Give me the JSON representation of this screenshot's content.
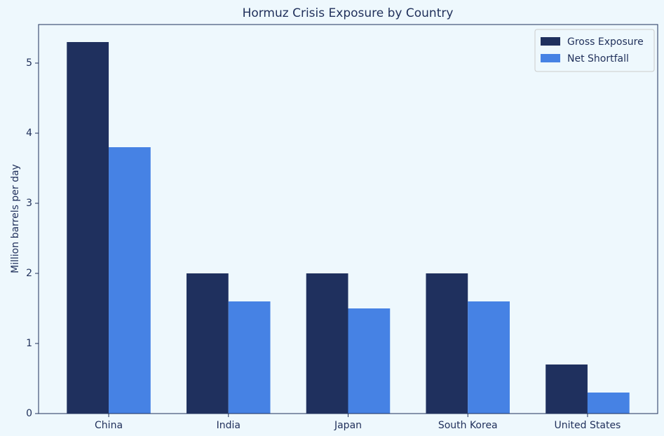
{
  "chart_data": {
    "type": "bar",
    "title": "Hormuz Crisis Exposure by Country",
    "y_label": "Million barrels per day",
    "categories": [
      "China",
      "India",
      "Japan",
      "South Korea",
      "United States"
    ],
    "series": [
      {
        "name": "Gross Exposure",
        "color": "#1f305e",
        "values": [
          5.3,
          2.0,
          2.0,
          2.0,
          0.7
        ]
      },
      {
        "name": "Net Shortfall",
        "color": "#4682e4",
        "values": [
          3.8,
          1.6,
          1.5,
          1.6,
          0.3
        ]
      }
    ],
    "ylim": [
      0,
      5.55
    ],
    "yticks": [
      0,
      1,
      2,
      3,
      4,
      5
    ],
    "grid": false,
    "legend": "upper right"
  }
}
